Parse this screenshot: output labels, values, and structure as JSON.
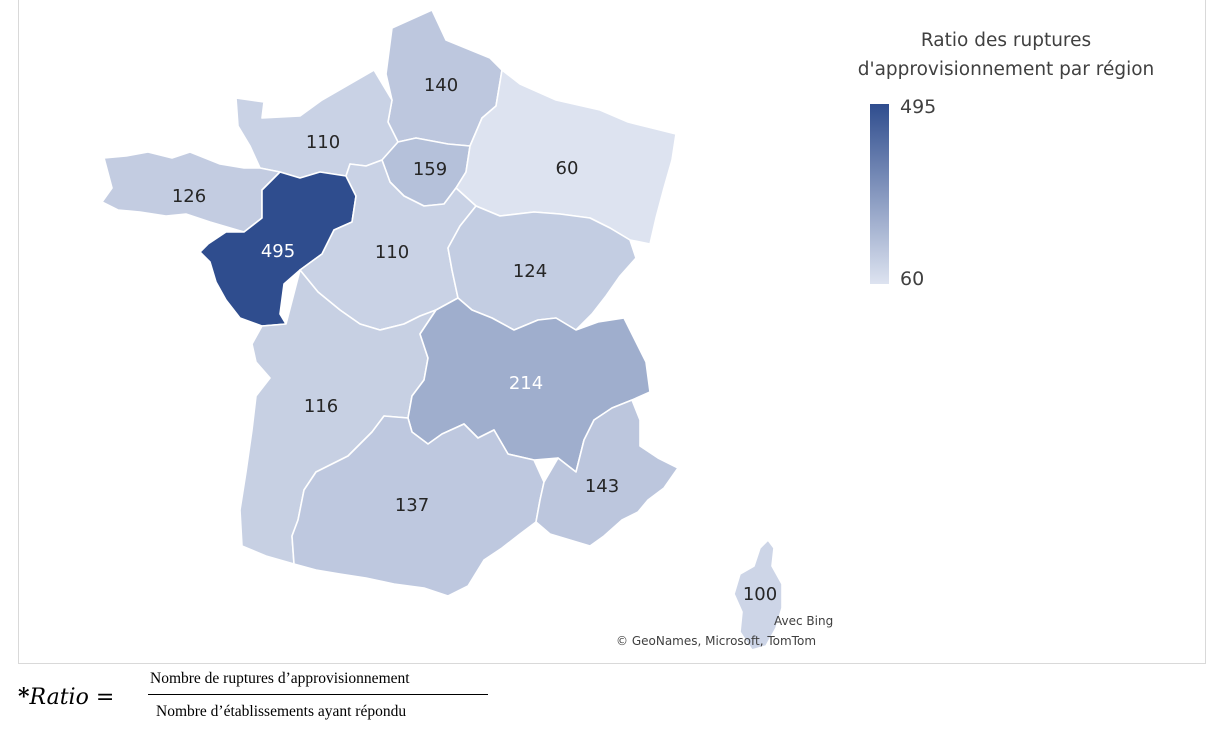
{
  "legend": {
    "title_line1": "Ratio des ruptures",
    "title_line2": "d'approvisionnement par région",
    "max_label": "495",
    "min_label": "60",
    "min_value": 60,
    "max_value": 495,
    "color_min": "#dde3f0",
    "color_max": "#2f4d8e"
  },
  "regions": [
    {
      "id": "hauts-de-france",
      "value": 140,
      "label": "140"
    },
    {
      "id": "normandie",
      "value": 110,
      "label": "110"
    },
    {
      "id": "ile-de-france",
      "value": 159,
      "label": "159"
    },
    {
      "id": "grand-est",
      "value": 60,
      "label": "60"
    },
    {
      "id": "bretagne",
      "value": 126,
      "label": "126"
    },
    {
      "id": "pays-de-la-loire",
      "value": 495,
      "label": "495"
    },
    {
      "id": "centre-val-de-loire",
      "value": 110,
      "label": "110"
    },
    {
      "id": "bourgogne-franche-comte",
      "value": 124,
      "label": "124"
    },
    {
      "id": "nouvelle-aquitaine",
      "value": 116,
      "label": "116"
    },
    {
      "id": "auvergne-rhone-alpes",
      "value": 214,
      "label": "214"
    },
    {
      "id": "occitanie",
      "value": 137,
      "label": "137"
    },
    {
      "id": "provence-alpes-cote-d-azur",
      "value": 143,
      "label": "143"
    },
    {
      "id": "corse",
      "value": 100,
      "label": "100"
    }
  ],
  "credits": {
    "bing": "Avec Bing",
    "sources": "© GeoNames, Microsoft, TomTom"
  },
  "formula": {
    "star": "*",
    "variable": "Ratio",
    "equals": " = ",
    "numerator": "Nombre de ruptures d’approvisionnement",
    "denominator": "Nombre d’établissements ayant répondu"
  }
}
